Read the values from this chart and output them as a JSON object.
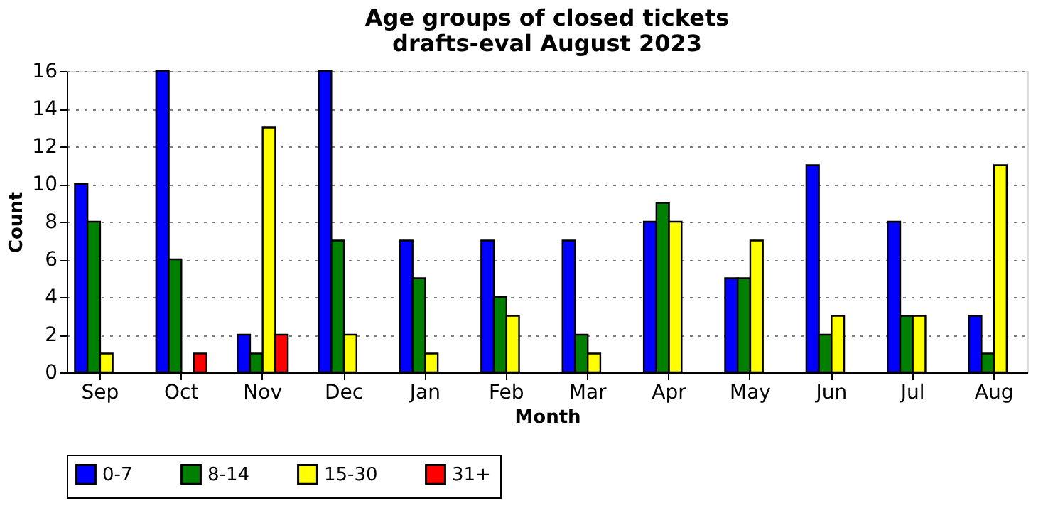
{
  "chart_data": {
    "type": "bar",
    "title": "Age groups of closed tickets\ndrafts-eval August 2023",
    "xlabel": "Month",
    "ylabel": "Count",
    "categories": [
      "Sep",
      "Oct",
      "Nov",
      "Dec",
      "Jan",
      "Feb",
      "Mar",
      "Apr",
      "May",
      "Jun",
      "Jul",
      "Aug"
    ],
    "series": [
      {
        "name": "0-7",
        "color": "#0000ff",
        "values": [
          10,
          16,
          2,
          16,
          7,
          7,
          7,
          8,
          5,
          11,
          8,
          3
        ]
      },
      {
        "name": "8-14",
        "color": "#008000",
        "values": [
          8,
          6,
          1,
          7,
          5,
          4,
          2,
          9,
          5,
          2,
          3,
          1
        ]
      },
      {
        "name": "15-30",
        "color": "#ffff00",
        "values": [
          1,
          0,
          13,
          2,
          1,
          3,
          1,
          8,
          7,
          3,
          3,
          11
        ]
      },
      {
        "name": "31+",
        "color": "#ff0000",
        "values": [
          0,
          1,
          2,
          0,
          0,
          0,
          0,
          0,
          0,
          0,
          0,
          0
        ]
      }
    ],
    "ylim": [
      0,
      16
    ],
    "yticks": [
      0,
      2,
      4,
      6,
      8,
      10,
      12,
      14,
      16
    ],
    "grid": "y",
    "legend": "bottom"
  }
}
